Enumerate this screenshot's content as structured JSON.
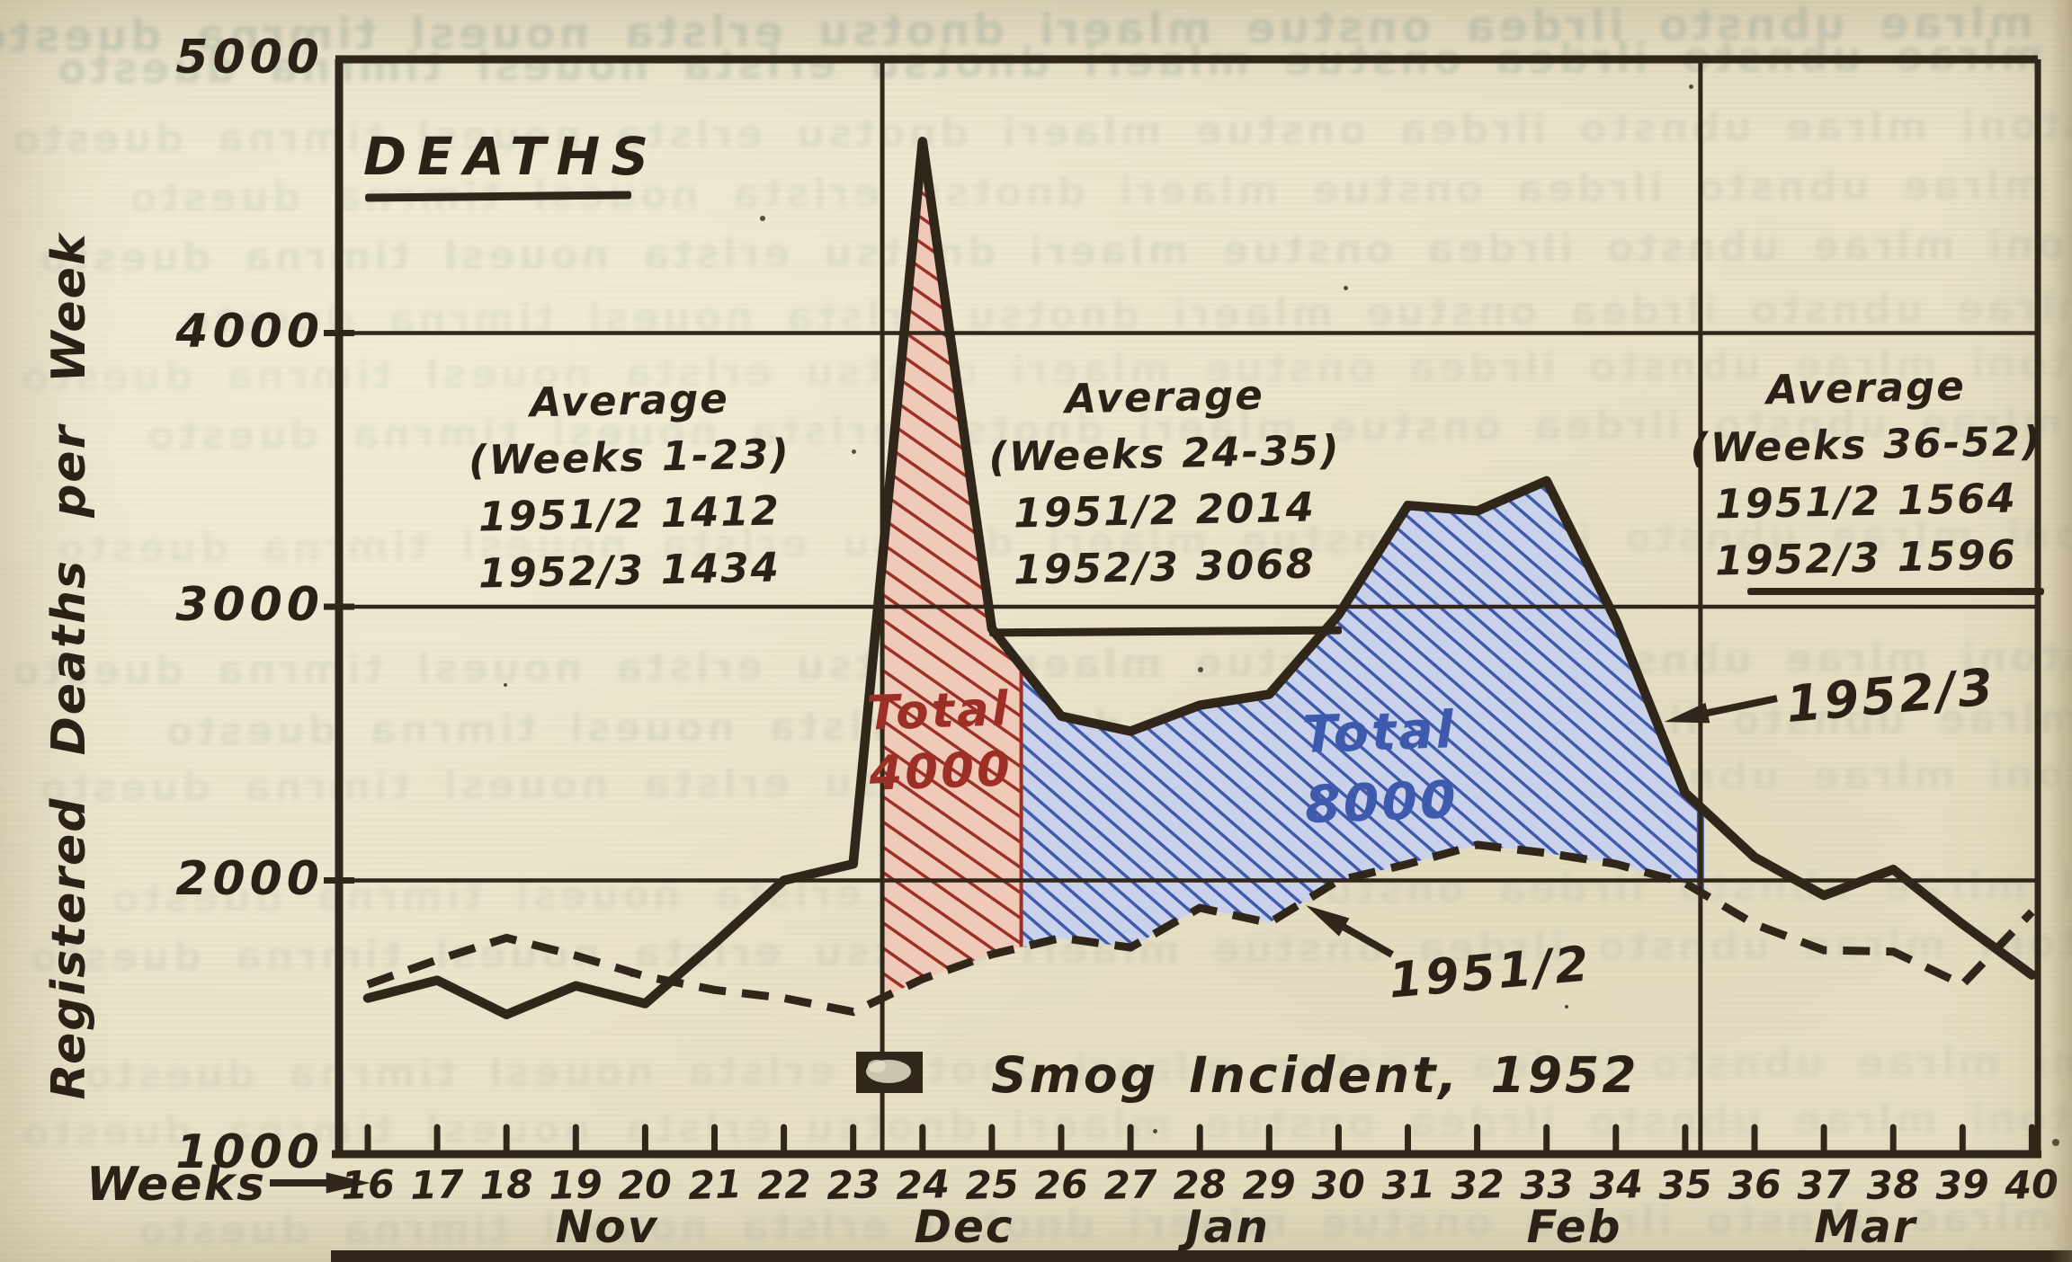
{
  "page": {
    "type": "scanned-book-figure",
    "paper_color": "#e9e2c8",
    "ink_color": "#30261a"
  },
  "chart_data": {
    "type": "line",
    "title": "DEATHS",
    "ylabel": "Registered Deaths per Week",
    "x_axis_label": "Weeks",
    "ylim": [
      1000,
      5000
    ],
    "yticks": [
      5000,
      4000,
      3000,
      2000,
      1000
    ],
    "grid_y_values": [
      4000,
      3000,
      2000
    ],
    "weeks": [
      16,
      17,
      18,
      19,
      20,
      21,
      22,
      23,
      24,
      25,
      26,
      27,
      28,
      29,
      30,
      31,
      32,
      33,
      34,
      35,
      36,
      37,
      38,
      39,
      40
    ],
    "months": [
      {
        "label": "Nov",
        "week": 19.45
      },
      {
        "label": "Dec",
        "week": 24.6
      },
      {
        "label": "Jan",
        "week": 28.4
      },
      {
        "label": "Feb",
        "week": 33.4
      },
      {
        "label": "Mar",
        "week": 37.6
      }
    ],
    "period_divider_weeks": [
      23.42,
      35.22
    ],
    "series": [
      {
        "name": "1952/3",
        "style": "solid",
        "color": "#30261a",
        "values": [
          1570,
          1635,
          1510,
          1615,
          1550,
          1770,
          2000,
          2060,
          4700,
          2920,
          2600,
          2545,
          2640,
          2680,
          2970,
          3370,
          3350,
          3460,
          2950,
          2320,
          2085,
          1945,
          2040,
          1840,
          1655
        ]
      },
      {
        "name": "1951/2",
        "style": "dashed",
        "color": "#30261a",
        "values": [
          1620,
          1710,
          1790,
          1725,
          1650,
          1600,
          1570,
          1520,
          1640,
          1730,
          1790,
          1755,
          1900,
          1845,
          2000,
          2060,
          2130,
          2100,
          2060,
          1990,
          1840,
          1745,
          1740,
          1620,
          1885
        ]
      }
    ],
    "regions": [
      {
        "name": "smog-excess",
        "label_lines": [
          "Total",
          "4000"
        ],
        "from_week": 23.42,
        "to_week": 25.45,
        "hatch_color": "#9c3027",
        "fill_color": "#efcab8"
      },
      {
        "name": "winter-excess",
        "label_lines": [
          "Total",
          "8000"
        ],
        "from_week": 25.45,
        "to_week": 35.22,
        "hatch_color": "#3e5aac",
        "fill_color": "#cad2eb"
      }
    ],
    "averages": [
      {
        "lines": [
          "Average",
          "(Weeks 1-23)",
          "1951/2  1412",
          "1952/3  1434"
        ],
        "underline_last": false
      },
      {
        "lines": [
          "Average",
          "(Weeks 24-35)",
          "1951/2  2014",
          "1952/3  3068"
        ],
        "underline_last": true
      },
      {
        "lines": [
          "Average",
          "(Weeks 36-52)",
          "1951/2  1564",
          "1952/3  1596"
        ],
        "underline_last": true
      }
    ],
    "series_callouts": [
      {
        "text": "1952/3"
      },
      {
        "text": "1951/2"
      }
    ],
    "smog_legend": {
      "marker": "mottled-square",
      "text": "Smog Incident, 1952"
    }
  }
}
